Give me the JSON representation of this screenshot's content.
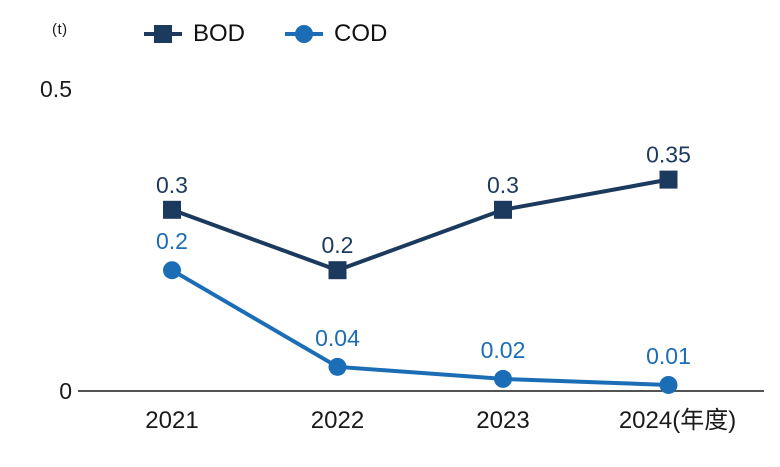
{
  "chart_data": {
    "type": "line",
    "unit": "(t)",
    "categories": [
      "2021",
      "2022",
      "2023",
      "2024(年度)"
    ],
    "series": [
      {
        "name": "BOD",
        "marker": "square",
        "color": "#1c3a5e",
        "values": [
          0.3,
          0.2,
          0.3,
          0.35
        ],
        "point_labels": [
          "0.3",
          "0.2",
          "0.3",
          "0.35"
        ]
      },
      {
        "name": "COD",
        "marker": "circle",
        "color": "#1b6db5",
        "values": [
          0.2,
          0.04,
          0.02,
          0.01
        ],
        "point_labels": [
          "0.2",
          "0.04",
          "0.02",
          "0.01"
        ]
      }
    ],
    "ylim": [
      0,
      0.5
    ],
    "y_ticks": [
      {
        "value": 0,
        "label": "0"
      },
      {
        "value": 0.5,
        "label": "0.5"
      }
    ],
    "legend_position": "top",
    "grid": false,
    "colors": {
      "axis": "#1a1a1a",
      "tick_text": "#1a1a1a",
      "background": "#ffffff"
    }
  }
}
